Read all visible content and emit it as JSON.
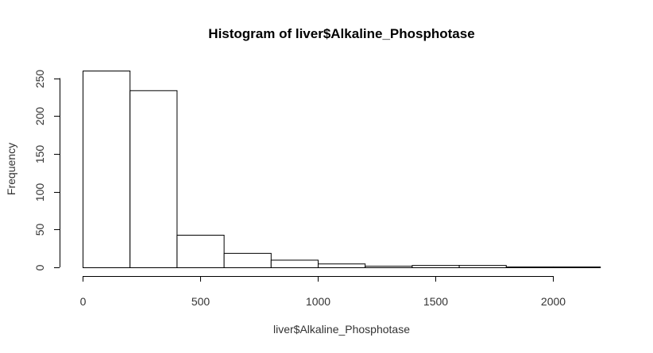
{
  "chart_data": {
    "type": "bar",
    "title": "Histogram of liver$Alkaline_Phosphotase",
    "xlabel": "liver$Alkaline_Phosphotase",
    "ylabel": "Frequency",
    "bins": [
      {
        "start": 0,
        "end": 200,
        "count": 260
      },
      {
        "start": 200,
        "end": 400,
        "count": 234
      },
      {
        "start": 400,
        "end": 600,
        "count": 43
      },
      {
        "start": 600,
        "end": 800,
        "count": 19
      },
      {
        "start": 800,
        "end": 1000,
        "count": 10
      },
      {
        "start": 1000,
        "end": 1200,
        "count": 5
      },
      {
        "start": 1200,
        "end": 1400,
        "count": 2
      },
      {
        "start": 1400,
        "end": 1600,
        "count": 3
      },
      {
        "start": 1600,
        "end": 1800,
        "count": 3
      },
      {
        "start": 1800,
        "end": 2000,
        "count": 1
      },
      {
        "start": 2000,
        "end": 2200,
        "count": 1
      }
    ],
    "xticks": [
      0,
      500,
      1000,
      1500,
      2000
    ],
    "yticks": [
      0,
      50,
      100,
      150,
      200,
      250
    ],
    "xlim": [
      0,
      2200
    ],
    "ylim": [
      0,
      260
    ],
    "grid": false,
    "legend": "none"
  }
}
